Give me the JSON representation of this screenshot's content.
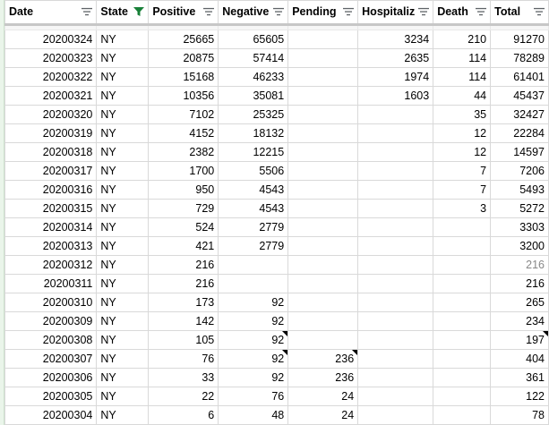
{
  "columns": [
    {
      "key": "date",
      "label": "Date",
      "filter_active": false
    },
    {
      "key": "state",
      "label": "State",
      "filter_active": true
    },
    {
      "key": "positive",
      "label": "Positive",
      "filter_active": false
    },
    {
      "key": "negative",
      "label": "Negative",
      "filter_active": false
    },
    {
      "key": "pending",
      "label": "Pending",
      "filter_active": false
    },
    {
      "key": "hospitalized",
      "label": "Hospitaliz",
      "filter_active": false
    },
    {
      "key": "death",
      "label": "Death",
      "filter_active": false
    },
    {
      "key": "total",
      "label": "Total",
      "filter_active": false
    }
  ],
  "rows": [
    [
      "20200324",
      "NY",
      "25665",
      "65605",
      "",
      "3234",
      "210",
      "91270"
    ],
    [
      "20200323",
      "NY",
      "20875",
      "57414",
      "",
      "2635",
      "114",
      "78289"
    ],
    [
      "20200322",
      "NY",
      "15168",
      "46233",
      "",
      "1974",
      "114",
      "61401"
    ],
    [
      "20200321",
      "NY",
      "10356",
      "35081",
      "",
      "1603",
      "44",
      "45437"
    ],
    [
      "20200320",
      "NY",
      "7102",
      "25325",
      "",
      "",
      "35",
      "32427"
    ],
    [
      "20200319",
      "NY",
      "4152",
      "18132",
      "",
      "",
      "12",
      "22284"
    ],
    [
      "20200318",
      "NY",
      "2382",
      "12215",
      "",
      "",
      "12",
      "14597"
    ],
    [
      "20200317",
      "NY",
      "1700",
      "5506",
      "",
      "",
      "7",
      "7206"
    ],
    [
      "20200316",
      "NY",
      "950",
      "4543",
      "",
      "",
      "7",
      "5493"
    ],
    [
      "20200315",
      "NY",
      "729",
      "4543",
      "",
      "",
      "3",
      "5272"
    ],
    [
      "20200314",
      "NY",
      "524",
      "2779",
      "",
      "",
      "",
      "3303"
    ],
    [
      "20200313",
      "NY",
      "421",
      "2779",
      "",
      "",
      "",
      "3200"
    ],
    [
      "20200312",
      "NY",
      "216",
      "",
      "",
      "",
      "",
      "216"
    ],
    [
      "20200311",
      "NY",
      "216",
      "",
      "",
      "",
      "",
      "216"
    ],
    [
      "20200310",
      "NY",
      "173",
      "92",
      "",
      "",
      "",
      "265"
    ],
    [
      "20200309",
      "NY",
      "142",
      "92",
      "",
      "",
      "",
      "234"
    ],
    [
      "20200308",
      "NY",
      "105",
      "92",
      "",
      "",
      "",
      "197"
    ],
    [
      "20200307",
      "NY",
      "76",
      "92",
      "236",
      "",
      "",
      "404"
    ],
    [
      "20200306",
      "NY",
      "33",
      "92",
      "236",
      "",
      "",
      "361"
    ],
    [
      "20200305",
      "NY",
      "22",
      "76",
      "24",
      "",
      "",
      "122"
    ],
    [
      "20200304",
      "NY",
      "6",
      "48",
      "24",
      "",
      "",
      "78"
    ]
  ],
  "note_marks": [
    [
      16,
      3
    ],
    [
      16,
      7
    ],
    [
      17,
      3
    ],
    [
      17,
      4
    ]
  ],
  "gray_cells": [
    [
      12,
      7
    ]
  ],
  "colors": {
    "filter_active": "#188038",
    "filter_idle": "#5f6368",
    "grid": "#d9d9d9"
  }
}
